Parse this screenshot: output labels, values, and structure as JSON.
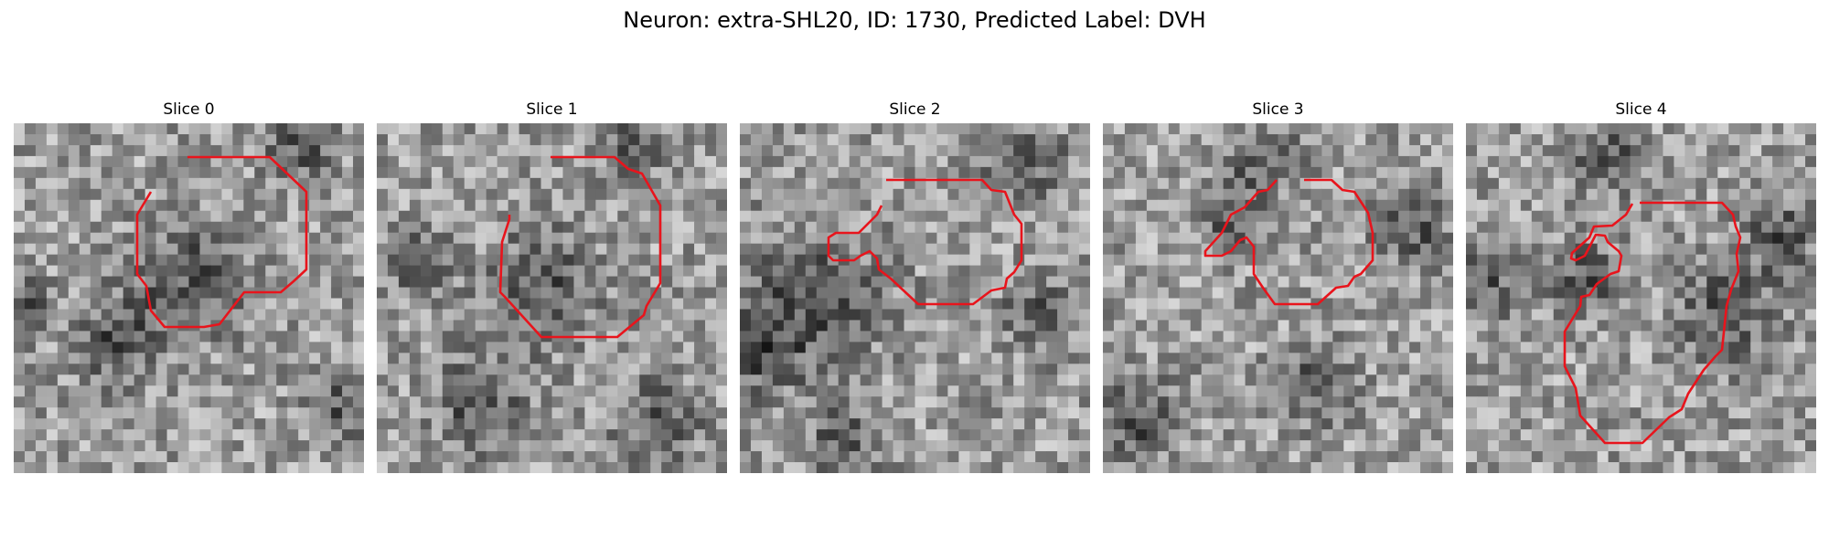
{
  "figure": {
    "title": "Neuron: extra-SHL20, ID: 1730, Predicted Label: DVH"
  },
  "panels": [
    {
      "title": "Slice 0"
    },
    {
      "title": "Slice 1"
    },
    {
      "title": "Slice 2"
    },
    {
      "title": "Slice 3"
    },
    {
      "title": "Slice 4"
    }
  ],
  "colors": {
    "contour": "#e8141c",
    "image_colormap": "grayscale"
  }
}
